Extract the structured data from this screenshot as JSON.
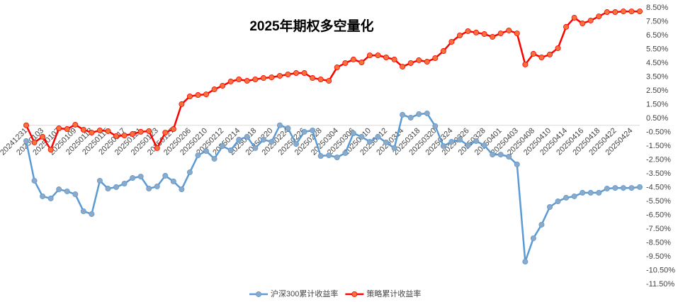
{
  "chart_data": {
    "type": "line",
    "title": "2025年期权多空量化",
    "categories": [
      "20241231",
      null,
      "20250103",
      null,
      "20250107",
      null,
      "20250109",
      null,
      "20250113",
      null,
      "20250115",
      null,
      "20250117",
      null,
      "20250121",
      null,
      "20250123",
      null,
      "20250127",
      null,
      "20250206",
      null,
      "20250210",
      null,
      "20250212",
      null,
      "20250214",
      null,
      "20250218",
      null,
      "20250220",
      null,
      "20250224",
      null,
      "20250226",
      null,
      "20250228",
      null,
      "20250304",
      null,
      "20250306",
      null,
      "20250310",
      null,
      "20250312",
      null,
      "20250314",
      null,
      "20250318",
      null,
      "20250320",
      null,
      "20250324",
      null,
      "20250326",
      null,
      "20250328",
      null,
      "20250401",
      null,
      "20250403",
      null,
      "20250408",
      null,
      "20250410",
      null,
      "20250414",
      null,
      "20250416",
      null,
      "20250418",
      null,
      "20250422",
      null,
      "20250424",
      null
    ],
    "series": [
      {
        "name": "沪深300累计收益率",
        "color": "#5b9bd5",
        "marker_color": "#8fa9c4",
        "values": [
          -1.14,
          -4.01,
          -5.14,
          -5.29,
          -4.63,
          -4.78,
          -4.99,
          -6.22,
          -6.42,
          -4.01,
          -4.58,
          -4.47,
          -4.22,
          -3.81,
          -3.71,
          -4.58,
          -4.42,
          -3.65,
          -4.06,
          -4.63,
          -3.4,
          -2.17,
          -1.86,
          -2.42,
          -1.5,
          -1.81,
          -1.04,
          -0.83,
          -1.65,
          -1.04,
          -1.19,
          0.0,
          -0.22,
          -1.35,
          -0.47,
          -0.37,
          -2.22,
          -2.17,
          -2.32,
          -2.01,
          -0.58,
          -0.83,
          -1.19,
          -0.83,
          -1.24,
          -1.65,
          0.76,
          0.55,
          0.81,
          0.86,
          -0.06,
          -1.5,
          -1.19,
          -1.04,
          -1.45,
          -1.14,
          -1.45,
          -2.12,
          -2.12,
          -2.27,
          -2.83,
          -9.86,
          -8.17,
          -7.19,
          -5.91,
          -5.5,
          -5.24,
          -5.14,
          -4.88,
          -4.88,
          -4.88,
          -4.58,
          -4.53,
          -4.53,
          -4.53,
          -4.47
        ]
      },
      {
        "name": "策略累计收益率",
        "color": "#ff0000",
        "marker_color": "#f4733a",
        "values": [
          0.0,
          -1.24,
          -0.83,
          -1.76,
          -0.22,
          -0.27,
          0.04,
          -0.32,
          -0.53,
          -0.37,
          -0.42,
          -0.78,
          -0.73,
          -0.63,
          -0.47,
          -0.42,
          -1.65,
          -0.53,
          -0.27,
          1.53,
          2.09,
          2.19,
          2.24,
          2.6,
          2.86,
          3.17,
          3.32,
          3.22,
          3.32,
          3.42,
          3.47,
          3.58,
          3.68,
          3.78,
          3.78,
          3.42,
          3.32,
          3.22,
          4.19,
          4.5,
          4.76,
          4.55,
          5.06,
          5.06,
          4.91,
          4.76,
          4.24,
          4.5,
          4.71,
          4.6,
          4.86,
          5.37,
          6.04,
          6.5,
          6.81,
          6.71,
          6.6,
          6.4,
          6.65,
          6.86,
          6.65,
          4.4,
          5.17,
          4.91,
          5.12,
          5.58,
          7.12,
          7.78,
          7.37,
          7.58,
          7.88,
          8.19,
          8.19,
          8.24,
          8.24,
          8.24
        ]
      }
    ],
    "ylim": [
      -11.5,
      8.5
    ],
    "yticks": [
      {
        "value": 8.5,
        "label": "8.50%"
      },
      {
        "value": 7.5,
        "label": "7.50%"
      },
      {
        "value": 6.5,
        "label": "6.50%"
      },
      {
        "value": 5.5,
        "label": "5.50%"
      },
      {
        "value": 4.5,
        "label": "4.50%"
      },
      {
        "value": 3.5,
        "label": "3.50%"
      },
      {
        "value": 2.5,
        "label": "2.50%"
      },
      {
        "value": 1.5,
        "label": "1.50%"
      },
      {
        "value": 0.5,
        "label": "0.50%"
      },
      {
        "value": -0.5,
        "label": "-0.50%"
      },
      {
        "value": -1.5,
        "label": "-1.50%"
      },
      {
        "value": -2.5,
        "label": "-2.50%"
      },
      {
        "value": -3.5,
        "label": "-3.50%"
      },
      {
        "value": -4.5,
        "label": "-4.50%"
      },
      {
        "value": -5.5,
        "label": "-5.50%"
      },
      {
        "value": -6.5,
        "label": "-6.50%"
      },
      {
        "value": -7.5,
        "label": "-7.50%"
      },
      {
        "value": -8.5,
        "label": "-8.50%"
      },
      {
        "value": -9.5,
        "label": "-9.50%"
      },
      {
        "value": -10.5,
        "label": "-10.50%"
      },
      {
        "value": -11.5,
        "label": "-11.50%"
      }
    ],
    "grid": false,
    "legend": "bottom"
  }
}
